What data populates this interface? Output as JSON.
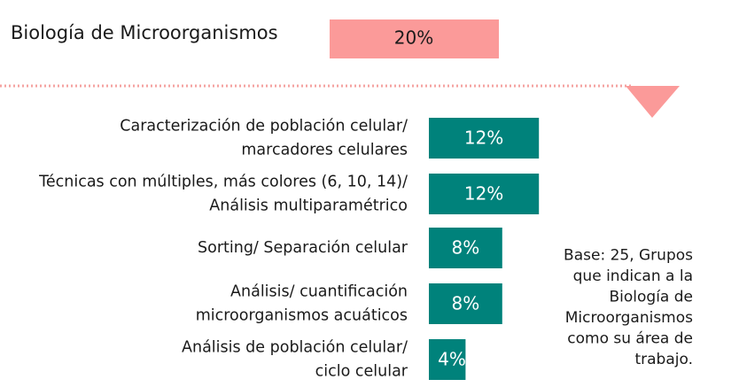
{
  "chart_data": {
    "type": "bar",
    "header_category": "Biología de Microorganismos",
    "header_value": 20,
    "header_value_label": "20%",
    "header_color": "#fb9a99",
    "categories": [
      "Caracterización de población celular/\nmarcadores celulares",
      "Técnicas con múltiples, más colores (6, 10, 14)/\nAnálisis multiparamétrico",
      "Sorting/ Separación celular",
      "Análisis/ cuantificación\nmicroorganismos acuáticos",
      "Análisis de población celular/\nciclo celular"
    ],
    "values": [
      12,
      12,
      8,
      8,
      4
    ],
    "value_labels": [
      "12%",
      "12%",
      "8%",
      "8%",
      "4%"
    ],
    "color": "#00827b",
    "annotation": "Base: 25, Grupos\nque indican a la\nBiología de\nMicroorganismos\ncomo su área de\ntrabajo."
  }
}
